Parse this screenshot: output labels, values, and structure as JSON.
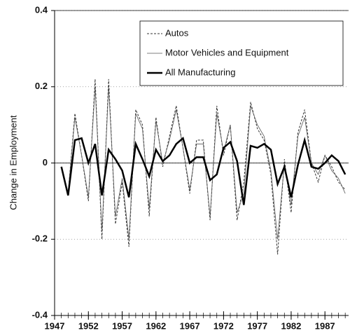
{
  "chart_data": {
    "type": "line",
    "y_label": "Change in Employment",
    "x": [
      1948,
      1949,
      1950,
      1951,
      1952,
      1953,
      1954,
      1955,
      1956,
      1957,
      1958,
      1959,
      1960,
      1961,
      1962,
      1963,
      1964,
      1965,
      1966,
      1967,
      1968,
      1969,
      1970,
      1971,
      1972,
      1973,
      1974,
      1975,
      1976,
      1977,
      1978,
      1979,
      1980,
      1981,
      1982,
      1983,
      1984,
      1985,
      1986,
      1987,
      1988,
      1989,
      1990
    ],
    "series": [
      {
        "name": "Autos",
        "color": "#333333",
        "line_style": "dashed",
        "line_width": 1,
        "values": [
          -0.01,
          -0.08,
          0.13,
          0.02,
          -0.1,
          0.22,
          -0.2,
          0.22,
          -0.16,
          -0.05,
          -0.22,
          0.14,
          0.1,
          -0.14,
          0.12,
          -0.01,
          0.07,
          0.15,
          0.04,
          -0.08,
          0.06,
          0.06,
          -0.15,
          0.15,
          0.02,
          0.1,
          -0.15,
          -0.05,
          0.16,
          0.09,
          0.06,
          -0.03,
          -0.24,
          0.01,
          -0.13,
          0.08,
          0.14,
          0.0,
          -0.05,
          0.02,
          -0.01,
          -0.05,
          -0.07
        ]
      },
      {
        "name": "Motor Vehicles and Equipment",
        "color": "#555555",
        "line_style": "solid",
        "line_width": 0.8,
        "values": [
          -0.01,
          -0.08,
          0.12,
          0.02,
          -0.09,
          0.2,
          -0.18,
          0.2,
          -0.14,
          -0.04,
          -0.2,
          0.13,
          0.09,
          -0.12,
          0.11,
          0.0,
          0.06,
          0.14,
          0.04,
          -0.07,
          0.05,
          0.05,
          -0.14,
          0.13,
          0.03,
          0.1,
          -0.13,
          -0.08,
          0.15,
          0.1,
          0.07,
          -0.02,
          -0.2,
          0.0,
          -0.11,
          0.07,
          0.12,
          0.0,
          -0.03,
          0.02,
          -0.02,
          -0.04,
          -0.08
        ]
      },
      {
        "name": "All Manufacturing",
        "color": "#000000",
        "line_style": "solid",
        "line_width": 2.5,
        "values": [
          -0.01,
          -0.085,
          0.06,
          0.065,
          0.0,
          0.05,
          -0.085,
          0.035,
          0.01,
          -0.02,
          -0.09,
          0.05,
          0.01,
          -0.035,
          0.035,
          0.005,
          0.02,
          0.05,
          0.065,
          0.0,
          0.015,
          0.015,
          -0.045,
          -0.03,
          0.04,
          0.055,
          0.005,
          -0.11,
          0.045,
          0.04,
          0.05,
          0.035,
          -0.055,
          -0.01,
          -0.09,
          -0.005,
          0.06,
          -0.01,
          -0.015,
          0.0,
          0.02,
          0.005,
          -0.03
        ]
      }
    ],
    "xlim": [
      1947,
      1990.5
    ],
    "xticks": [
      1947,
      1952,
      1957,
      1962,
      1967,
      1972,
      1977,
      1982,
      1987
    ],
    "ylim": [
      -0.4,
      0.4
    ],
    "yticks": [
      0.4,
      0.2,
      0,
      -0.2,
      -0.4
    ],
    "grid": true,
    "legend": "upper right"
  }
}
